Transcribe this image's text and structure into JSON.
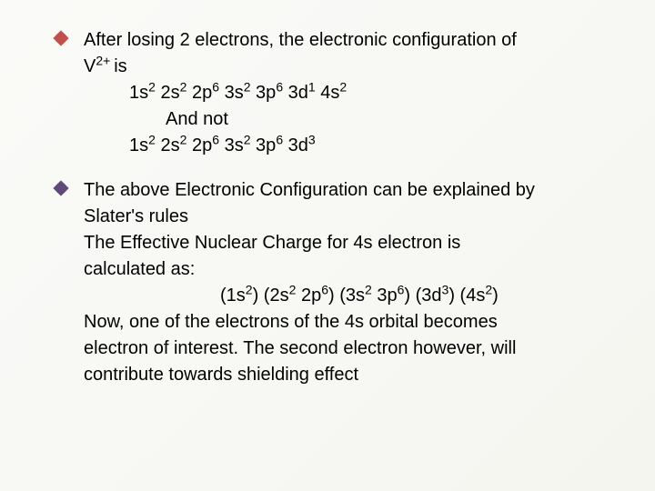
{
  "colors": {
    "bullet1": "#c0504d",
    "bullet2": "#604a7b",
    "text": "#000000",
    "background_from": "#fafaf8",
    "background_to": "#f5f5f0"
  },
  "typography": {
    "body_fontsize": 20,
    "font_family": "Arial"
  },
  "item1": {
    "l1a": "After losing 2 electrons, the electronic configuration  of",
    "l1b_pre": "V",
    "l1b_sup": "2+ ",
    "l1b_post": "is",
    "l2": "1s",
    "l2_s": "2",
    "l2b": " 2s",
    "l2b_s": "2",
    "l2c": " 2p",
    "l2c_s": "6",
    "l2d": " 3s",
    "l2d_s": "2",
    "l2e": " 3p",
    "l2e_s": "6",
    "l2f": " 3d",
    "l2f_s": "1",
    "l2g": " 4s",
    "l2g_s": "2",
    "l3": "And not",
    "l4": "1s",
    "l4_s": "2",
    "l4b": " 2s",
    "l4b_s": "2",
    "l4c": " 2p",
    "l4c_s": "6",
    "l4d": " 3s",
    "l4d_s": "2",
    "l4e": " 3p",
    "l4e_s": "6",
    "l4f": " 3d",
    "l4f_s": "3"
  },
  "item2": {
    "l1": "The above Electronic  Configuration can be explained by",
    "l2": "Slater's rules",
    "l3": "The Effective Nuclear Charge for 4s electron is",
    "l4": "calculated as:",
    "l5a": "(1s",
    "l5a_s": "2",
    "l5b": ") (2s",
    "l5b_s": "2",
    "l5c": " 2p",
    "l5c_s": "6",
    "l5d": ") (3s",
    "l5d_s": "2",
    "l5e": " 3p",
    "l5e_s": "6",
    "l5f": ") (3d",
    "l5f_s": "3",
    "l5g": ") (4s",
    "l5g_s": "2",
    "l5h": ")",
    "l6": "Now, one of the electrons of the 4s orbital becomes",
    "l7": "electron of  interest. The second electron however, will",
    "l8": "contribute towards shielding effect"
  }
}
